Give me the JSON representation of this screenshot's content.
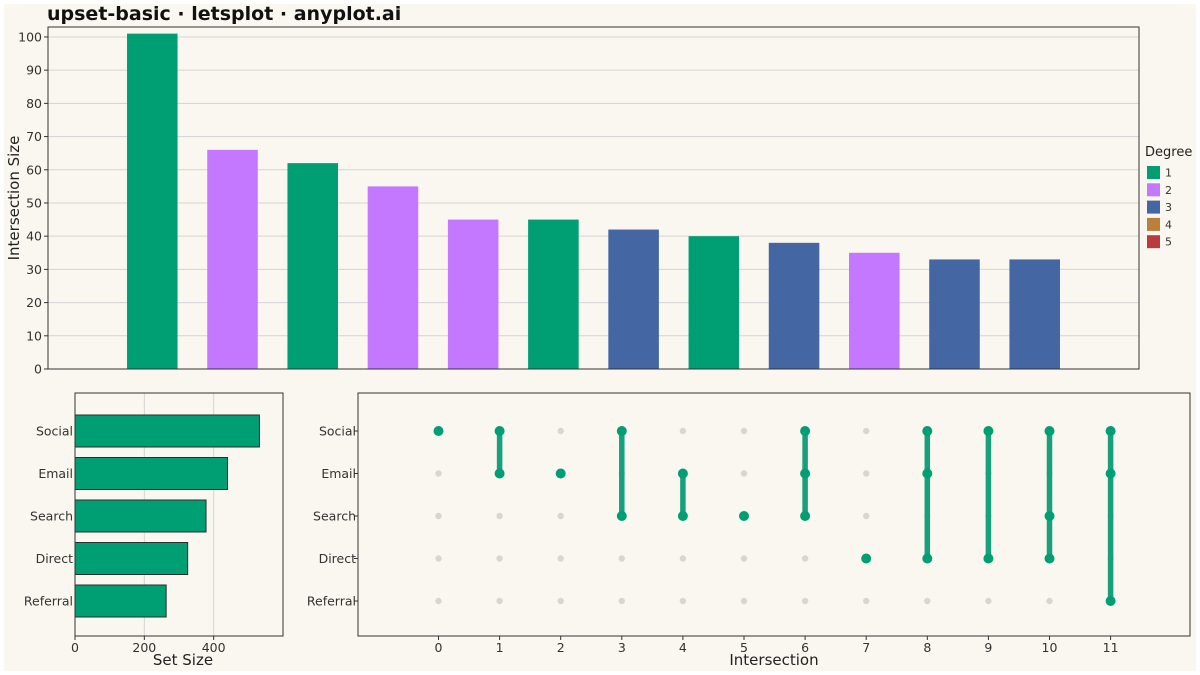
{
  "title": "upset-basic · letsplot · anyplot.ai",
  "colors": {
    "background": "#faf7f0",
    "grid": "#d4d4d4",
    "frame": "#333333",
    "bar_default": "#009e73",
    "dot_active": "#009e73",
    "dot_inactive": "#d9d6d0",
    "connector": "#16a07c"
  },
  "chart_data": [
    {
      "type": "bar",
      "name": "intersection-size",
      "categories": [
        "0",
        "1",
        "2",
        "3",
        "4",
        "5",
        "6",
        "7",
        "8",
        "9",
        "10",
        "11"
      ],
      "values": [
        101,
        66,
        62,
        55,
        45,
        45,
        42,
        40,
        38,
        35,
        33,
        33
      ],
      "degree": [
        1,
        2,
        1,
        2,
        2,
        1,
        3,
        1,
        3,
        2,
        3,
        3
      ],
      "ylabel": "Intersection Size",
      "ylim": [
        0,
        103
      ],
      "yticks": [
        0,
        10,
        20,
        30,
        40,
        50,
        60,
        70,
        80,
        90,
        100
      ],
      "grid": true
    },
    {
      "type": "bar",
      "orientation": "horizontal",
      "name": "set-size",
      "categories": [
        "Social",
        "Email",
        "Search",
        "Direct",
        "Referral"
      ],
      "values": [
        532,
        440,
        378,
        325,
        263
      ],
      "xlabel": "Set Size",
      "xlim": [
        0,
        600
      ],
      "xticks": [
        0,
        200,
        400
      ],
      "grid": true
    },
    {
      "type": "scatter",
      "name": "intersection-matrix",
      "xlabel": "Intersection",
      "xticks": [
        0,
        1,
        2,
        3,
        4,
        5,
        6,
        7,
        8,
        9,
        10,
        11
      ],
      "sets": [
        "Social",
        "Email",
        "Search",
        "Direct",
        "Referral"
      ],
      "memberships": [
        [
          "Social"
        ],
        [
          "Social",
          "Email"
        ],
        [
          "Email"
        ],
        [
          "Social",
          "Search"
        ],
        [
          "Email",
          "Search"
        ],
        [
          "Search"
        ],
        [
          "Social",
          "Email",
          "Search"
        ],
        [
          "Direct"
        ],
        [
          "Social",
          "Email",
          "Direct"
        ],
        [
          "Social",
          "Direct"
        ],
        [
          "Social",
          "Search",
          "Direct"
        ],
        [
          "Social",
          "Email",
          "Referral"
        ]
      ]
    }
  ],
  "legend": {
    "title": "Degree",
    "position": "right",
    "items": [
      {
        "label": "1",
        "color": "#009e73"
      },
      {
        "label": "2",
        "color": "#c378ff"
      },
      {
        "label": "3",
        "color": "#4466a3"
      },
      {
        "label": "4",
        "color": "#b8803b"
      },
      {
        "label": "5",
        "color": "#b93a3f"
      }
    ]
  }
}
